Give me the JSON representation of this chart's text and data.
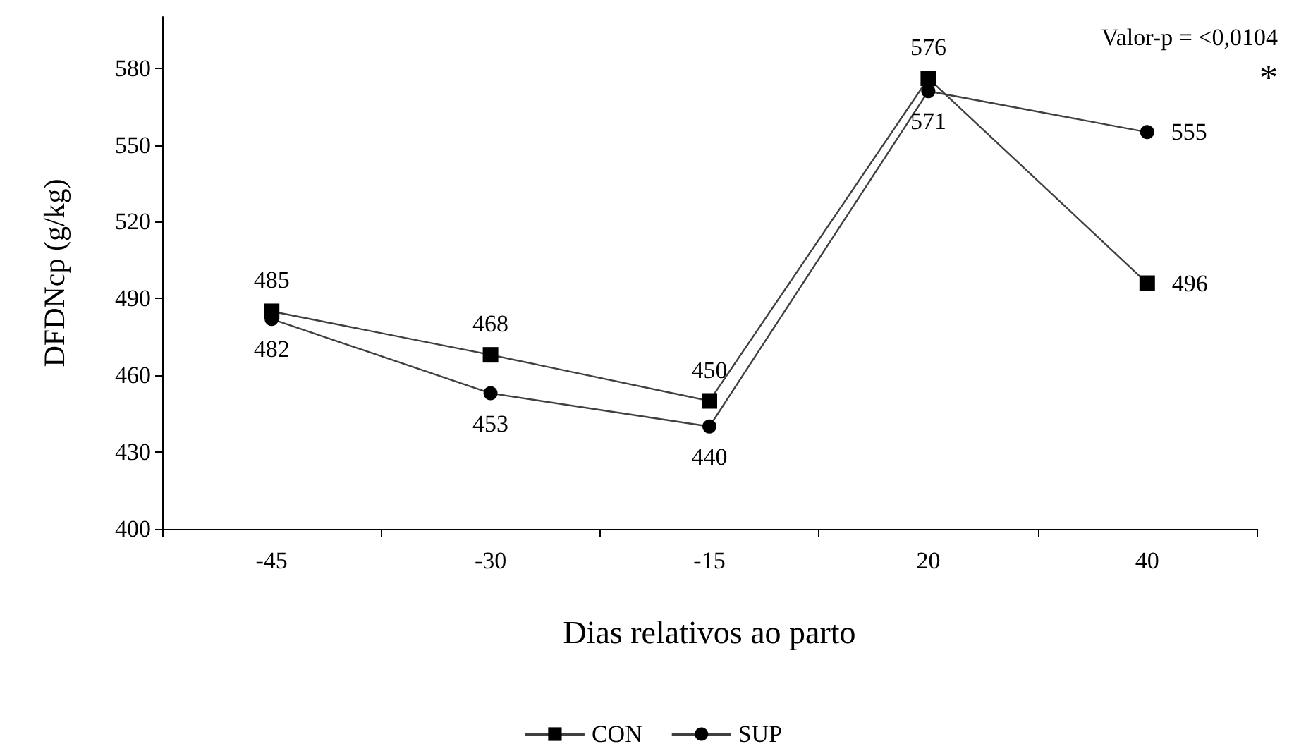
{
  "chart_data": {
    "type": "line",
    "xlabel": "Dias relativos ao parto",
    "ylabel": "DFDNcp (g/kg)",
    "categories": [
      "-45",
      "-30",
      "-15",
      "20",
      "40"
    ],
    "series": [
      {
        "name": "CON",
        "color": "#000000",
        "marker": "square",
        "values": [
          485,
          468,
          450,
          576,
          496
        ]
      },
      {
        "name": "SUP",
        "color": "#000000",
        "marker": "circle",
        "values": [
          482,
          453,
          440,
          571,
          555
        ]
      }
    ],
    "ylim": [
      400,
      600
    ],
    "yticks": [
      400,
      430,
      460,
      490,
      520,
      550,
      580
    ],
    "annotations": [
      "Valor-p = <0,0104",
      "*"
    ],
    "data_labels": true,
    "grid": false,
    "legend": "bottom",
    "line_style": "solid"
  }
}
